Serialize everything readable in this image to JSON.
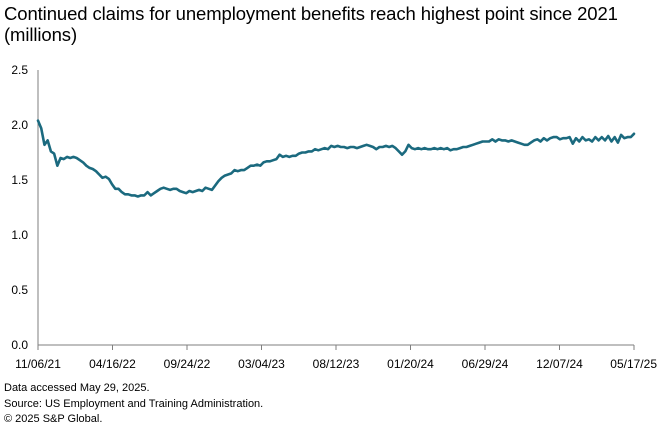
{
  "chart_data": {
    "type": "line",
    "title": "Continued claims for unemployment benefits reach highest point since 2021 (millions)",
    "xlabel": "",
    "ylabel": "",
    "ylim": [
      0,
      2.5
    ],
    "y_ticks": [
      0.0,
      0.5,
      1.0,
      1.5,
      2.0,
      2.5
    ],
    "y_tick_labels": [
      "0.0",
      "0.5",
      "1.0",
      "1.5",
      "2.0",
      "2.5"
    ],
    "x_tick_labels": [
      "11/06/21",
      "04/16/22",
      "09/24/22",
      "03/04/23",
      "08/12/23",
      "01/20/24",
      "06/29/24",
      "12/07/24",
      "05/17/25"
    ],
    "grid": false,
    "legend": "none",
    "line_color": "#1B6A7F",
    "series": [
      {
        "values": [
          2.04,
          1.97,
          1.82,
          1.86,
          1.76,
          1.74,
          1.63,
          1.7,
          1.69,
          1.71,
          1.7,
          1.71,
          1.7,
          1.68,
          1.66,
          1.63,
          1.61,
          1.6,
          1.58,
          1.55,
          1.52,
          1.53,
          1.51,
          1.46,
          1.42,
          1.42,
          1.39,
          1.37,
          1.37,
          1.36,
          1.36,
          1.35,
          1.36,
          1.36,
          1.39,
          1.36,
          1.38,
          1.4,
          1.42,
          1.43,
          1.42,
          1.41,
          1.42,
          1.42,
          1.4,
          1.39,
          1.38,
          1.4,
          1.39,
          1.4,
          1.41,
          1.4,
          1.43,
          1.42,
          1.41,
          1.45,
          1.49,
          1.52,
          1.54,
          1.55,
          1.56,
          1.59,
          1.58,
          1.59,
          1.59,
          1.61,
          1.63,
          1.63,
          1.64,
          1.63,
          1.66,
          1.67,
          1.67,
          1.68,
          1.69,
          1.73,
          1.71,
          1.72,
          1.71,
          1.72,
          1.72,
          1.74,
          1.75,
          1.75,
          1.76,
          1.76,
          1.78,
          1.77,
          1.78,
          1.79,
          1.78,
          1.81,
          1.8,
          1.81,
          1.8,
          1.8,
          1.79,
          1.8,
          1.8,
          1.79,
          1.8,
          1.81,
          1.82,
          1.81,
          1.8,
          1.78,
          1.8,
          1.8,
          1.81,
          1.8,
          1.81,
          1.79,
          1.76,
          1.73,
          1.76,
          1.82,
          1.79,
          1.78,
          1.79,
          1.78,
          1.79,
          1.78,
          1.78,
          1.79,
          1.78,
          1.79,
          1.78,
          1.79,
          1.77,
          1.78,
          1.78,
          1.79,
          1.8,
          1.8,
          1.81,
          1.82,
          1.83,
          1.84,
          1.85,
          1.85,
          1.85,
          1.87,
          1.85,
          1.87,
          1.86,
          1.86,
          1.85,
          1.86,
          1.85,
          1.84,
          1.83,
          1.82,
          1.82,
          1.84,
          1.86,
          1.87,
          1.85,
          1.88,
          1.86,
          1.88,
          1.89,
          1.89,
          1.87,
          1.88,
          1.88,
          1.89,
          1.83,
          1.88,
          1.85,
          1.89,
          1.86,
          1.87,
          1.85,
          1.89,
          1.86,
          1.89,
          1.86,
          1.9,
          1.85,
          1.89,
          1.84,
          1.91,
          1.88,
          1.89,
          1.89,
          1.92
        ]
      }
    ]
  },
  "footnotes": {
    "line1": "Data accessed May 29, 2025.",
    "line2": "Source: US Employment and Training Administration.",
    "line3": "© 2025 S&P Global."
  }
}
